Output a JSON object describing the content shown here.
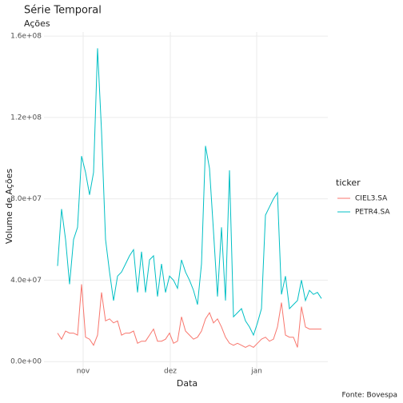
{
  "chart_data": {
    "type": "line",
    "title": "Série Temporal",
    "subtitle": "Ações",
    "caption": "Fonte: Bovespa",
    "x_label": "Data",
    "y_label": "Volume de Ações",
    "legend_title": "ticker",
    "legend": "right",
    "grid": true,
    "x": [
      0,
      1,
      2,
      3,
      4,
      5,
      6,
      7,
      8,
      9,
      10,
      11,
      12,
      13,
      14,
      15,
      16,
      17,
      18,
      19,
      20,
      21,
      22,
      23,
      24,
      25,
      26,
      27,
      28,
      29,
      30,
      31,
      32,
      33,
      34,
      35,
      36,
      37,
      38,
      39,
      40,
      41,
      42,
      43,
      44,
      45,
      46,
      47,
      48,
      49,
      50,
      51,
      52,
      53,
      54,
      55,
      56,
      57,
      58,
      59,
      60,
      61,
      62,
      63,
      64,
      65,
      66
    ],
    "xlim": [
      -3.4,
      67.6
    ],
    "xticks": [
      {
        "value": 6.4,
        "label": "nov"
      },
      {
        "value": 28.2,
        "label": "dez"
      },
      {
        "value": 49.8,
        "label": "jan"
      }
    ],
    "ylim": [
      -7000000,
      162000000
    ],
    "yticks": [
      {
        "value": 0,
        "label": "0.0e+00"
      },
      {
        "value": 40000000,
        "label": "4.0e+07"
      },
      {
        "value": 80000000,
        "label": "8.0e+07"
      },
      {
        "value": 120000000,
        "label": "1.2e+08"
      },
      {
        "value": 160000000,
        "label": "1.6e+08"
      }
    ],
    "series": [
      {
        "name": "CIEL3.SA",
        "color": "#F8766D",
        "values": [
          14000000.0,
          11000000.0,
          15000000.0,
          14000000.0,
          14000000.0,
          13000000.0,
          38000000.0,
          12000000.0,
          11000000.0,
          8000000.0,
          13000000.0,
          34000000.0,
          20000000.0,
          21000000.0,
          19000000.0,
          20000000.0,
          13000000.0,
          14000000.0,
          14000000.0,
          15000000.0,
          9000000.0,
          10000000.0,
          10000000.0,
          13000000.0,
          16000000.0,
          10000000.0,
          10000000.0,
          11000000.0,
          14000000.0,
          9000000.0,
          10000000.0,
          22000000.0,
          15000000.0,
          13000000.0,
          11000000.0,
          12000000.0,
          15000000.0,
          21000000.0,
          24000000.0,
          19000000.0,
          21000000.0,
          17000000.0,
          12000000.0,
          9000000.0,
          8000000.0,
          9000000.0,
          8000000.0,
          7000000.0,
          8000000.0,
          7000000.0,
          9000000.0,
          11000000.0,
          12000000.0,
          10000000.0,
          11000000.0,
          17000000.0,
          29000000.0,
          13000000.0,
          12000000.0,
          12000000.0,
          7000000.0,
          27000000.0,
          17000000.0,
          16000000.0,
          16000000.0,
          16000000.0,
          16000000.0
        ]
      },
      {
        "name": "PETR4.SA",
        "color": "#00BFC4",
        "values": [
          47000000.0,
          75000000.0,
          60000000.0,
          38000000.0,
          60000000.0,
          66000000.0,
          101000000.0,
          93000000.0,
          82000000.0,
          93000000.0,
          154000000.0,
          113000000.0,
          60000000.0,
          44000000.0,
          30000000.0,
          42000000.0,
          44000000.0,
          48000000.0,
          52000000.0,
          55000000.0,
          34000000.0,
          54000000.0,
          34000000.0,
          50000000.0,
          52000000.0,
          32000000.0,
          48000000.0,
          34000000.0,
          42000000.0,
          40000000.0,
          36000000.0,
          50000000.0,
          44000000.0,
          40000000.0,
          35000000.0,
          28000000.0,
          48000000.0,
          106000000.0,
          95000000.0,
          64000000.0,
          32000000.0,
          66000000.0,
          30000000.0,
          94000000.0,
          22000000.0,
          24000000.0,
          26000000.0,
          20000000.0,
          17000000.0,
          13000000.0,
          19000000.0,
          26000000.0,
          72000000.0,
          76000000.0,
          80000000.0,
          83000000.0,
          33000000.0,
          42000000.0,
          26000000.0,
          28000000.0,
          30000000.0,
          40000000.0,
          30000000.0,
          35000000.0,
          33000000.0,
          34000000.0,
          31000000.0
        ]
      }
    ]
  }
}
